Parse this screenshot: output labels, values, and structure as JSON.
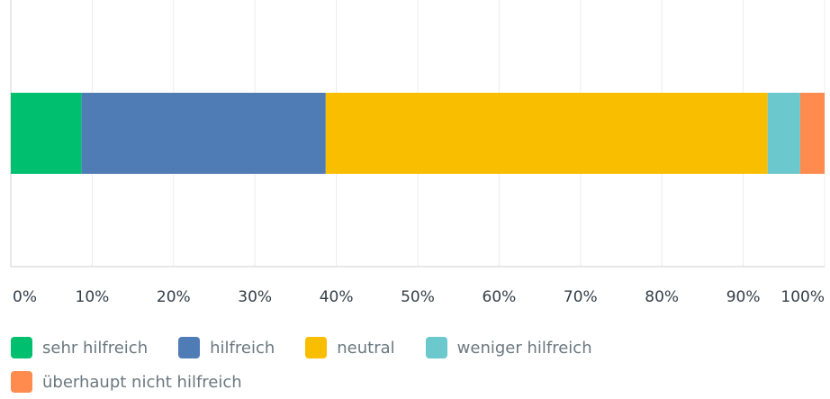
{
  "chart_data": {
    "type": "bar",
    "orientation": "horizontal",
    "stacked": true,
    "categories": [
      null
    ],
    "series": [
      {
        "name": "sehr hilfreich",
        "color": "#00bf6f",
        "values": [
          8.7
        ]
      },
      {
        "name": "hilfreich",
        "color": "#507cb6",
        "values": [
          30.0
        ]
      },
      {
        "name": "neutral",
        "color": "#f9be00",
        "values": [
          54.3
        ]
      },
      {
        "name": "weniger hilfreich",
        "color": "#6bc8cd",
        "values": [
          4.0
        ]
      },
      {
        "name": "überhaupt nicht hilfreich",
        "color": "#ff8b4f",
        "values": [
          3.0
        ]
      }
    ],
    "xlim": [
      0,
      100
    ],
    "xticks": [
      {
        "value": 0,
        "label": "0%"
      },
      {
        "value": 10,
        "label": "10%"
      },
      {
        "value": 20,
        "label": "20%"
      },
      {
        "value": 30,
        "label": "30%"
      },
      {
        "value": 40,
        "label": "40%"
      },
      {
        "value": 50,
        "label": "50%"
      },
      {
        "value": 60,
        "label": "60%"
      },
      {
        "value": 70,
        "label": "70%"
      },
      {
        "value": 80,
        "label": "80%"
      },
      {
        "value": 90,
        "label": "90%"
      },
      {
        "value": 100,
        "label": "100%"
      }
    ],
    "grid": true,
    "legend": "bottom"
  }
}
